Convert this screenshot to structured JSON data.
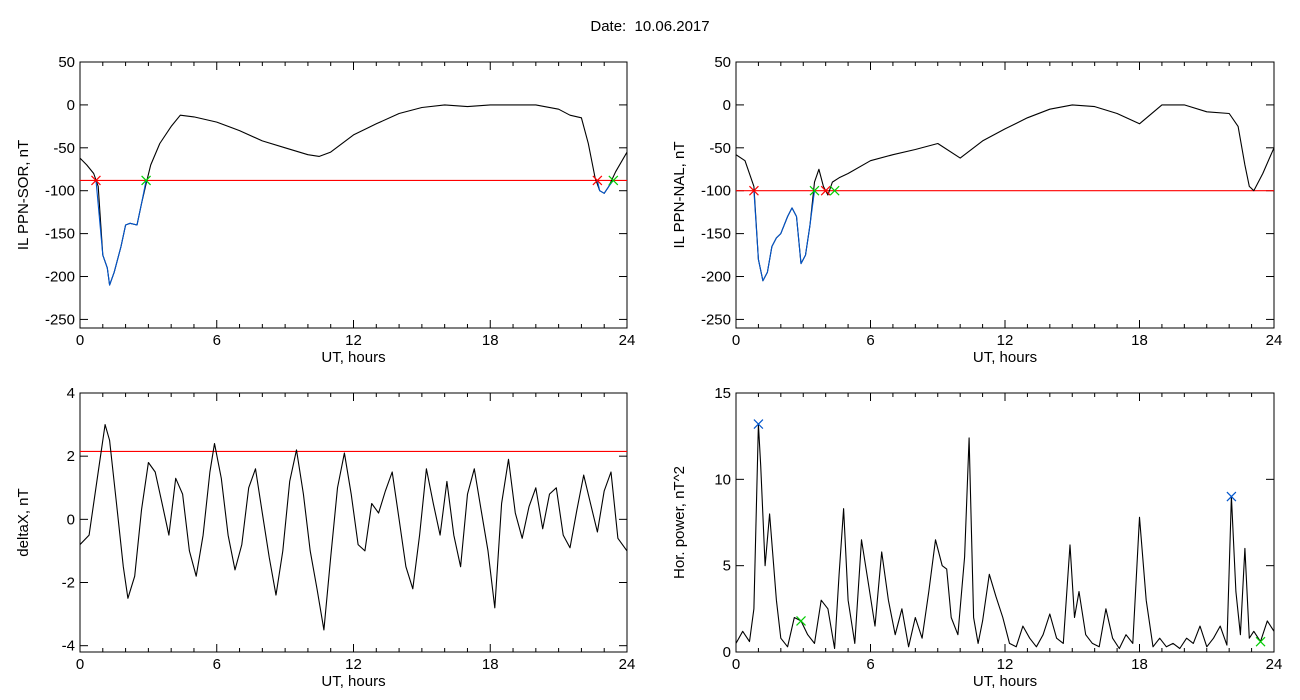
{
  "header": {
    "date_text": "Date:  10.06.2017"
  },
  "chart_data": [
    {
      "id": "sor",
      "type": "line",
      "xlabel": "UT, hours",
      "ylabel": "IL PPN-SOR, nT",
      "xlim": [
        0,
        24
      ],
      "ylim": [
        -260,
        50
      ],
      "xticks": [
        0,
        6,
        12,
        18,
        24
      ],
      "yticks": [
        50,
        0,
        -50,
        -100,
        -150,
        -200,
        -250
      ],
      "threshold": {
        "value": -88,
        "color": "#ff0000"
      },
      "series": [
        {
          "color": "#000000",
          "x": [
            0,
            0.3,
            0.6,
            0.8,
            1.0,
            1.2,
            1.3,
            1.5,
            1.8,
            2.0,
            2.2,
            2.5,
            2.7,
            2.9,
            3.1,
            3.5,
            4.0,
            4.4,
            5,
            6,
            7,
            8,
            9,
            10,
            10.5,
            11,
            12,
            13,
            14,
            15,
            16,
            17,
            18,
            19,
            20,
            21,
            21.5,
            22,
            22.3,
            22.6,
            22.8,
            23.0,
            23.2,
            23.5,
            24
          ],
          "y": [
            -62,
            -70,
            -80,
            -95,
            -175,
            -190,
            -210,
            -195,
            -165,
            -140,
            -138,
            -140,
            -115,
            -92,
            -70,
            -45,
            -25,
            -12,
            -14,
            -20,
            -30,
            -42,
            -50,
            -58,
            -60,
            -55,
            -35,
            -22,
            -10,
            -3,
            0,
            -2,
            0,
            0,
            0,
            -5,
            -12,
            -15,
            -45,
            -85,
            -100,
            -103,
            -95,
            -78,
            -55
          ]
        },
        {
          "color": "#0055cc",
          "x": [
            0.7,
            1.0,
            1.2,
            1.3,
            1.5,
            1.8,
            2.0,
            2.2,
            2.5,
            2.7,
            2.9
          ],
          "y": [
            -88,
            -175,
            -190,
            -210,
            -195,
            -165,
            -140,
            -138,
            -140,
            -115,
            -88
          ]
        },
        {
          "color": "#0055cc",
          "x": [
            22.7,
            22.8,
            23.0,
            23.2,
            23.4
          ],
          "y": [
            -88,
            -100,
            -103,
            -95,
            -88
          ]
        }
      ],
      "markers": [
        {
          "x": 0.7,
          "y": -88,
          "color": "#ff0000"
        },
        {
          "x": 2.9,
          "y": -88,
          "color": "#00cc00"
        },
        {
          "x": 22.7,
          "y": -88,
          "color": "#ff0000"
        },
        {
          "x": 23.4,
          "y": -88,
          "color": "#00cc00"
        }
      ]
    },
    {
      "id": "nal",
      "type": "line",
      "xlabel": "UT, hours",
      "ylabel": "IL PPN-NAL, nT",
      "xlim": [
        0,
        24
      ],
      "ylim": [
        -260,
        50
      ],
      "xticks": [
        0,
        6,
        12,
        18,
        24
      ],
      "yticks": [
        50,
        0,
        -50,
        -100,
        -150,
        -200,
        -250
      ],
      "threshold": {
        "value": -100,
        "color": "#ff0000"
      },
      "series": [
        {
          "color": "#000000",
          "x": [
            0,
            0.4,
            0.8,
            1.0,
            1.2,
            1.4,
            1.6,
            1.8,
            2.0,
            2.3,
            2.5,
            2.7,
            2.9,
            3.1,
            3.3,
            3.5,
            3.7,
            3.9,
            4.1,
            4.3,
            4.6,
            5,
            6,
            7,
            8,
            9,
            10,
            11,
            12,
            13,
            14,
            15,
            16,
            17,
            18,
            19,
            20,
            21,
            22,
            22.4,
            22.7,
            22.9,
            23.1,
            23.5,
            24
          ],
          "y": [
            -58,
            -65,
            -95,
            -180,
            -205,
            -195,
            -165,
            -155,
            -150,
            -130,
            -120,
            -130,
            -185,
            -175,
            -140,
            -90,
            -75,
            -95,
            -105,
            -90,
            -85,
            -80,
            -65,
            -58,
            -52,
            -45,
            -62,
            -42,
            -28,
            -15,
            -5,
            0,
            -2,
            -10,
            -22,
            0,
            0,
            -8,
            -10,
            -25,
            -70,
            -95,
            -100,
            -80,
            -50
          ]
        },
        {
          "color": "#0055cc",
          "x": [
            0.8,
            1.0,
            1.2,
            1.4,
            1.6,
            1.8,
            2.0,
            2.3,
            2.5,
            2.7,
            2.9,
            3.1,
            3.3,
            3.5
          ],
          "y": [
            -100,
            -180,
            -205,
            -195,
            -165,
            -155,
            -150,
            -130,
            -120,
            -130,
            -185,
            -175,
            -140,
            -100
          ]
        }
      ],
      "markers": [
        {
          "x": 0.8,
          "y": -100,
          "color": "#ff0000"
        },
        {
          "x": 3.5,
          "y": -100,
          "color": "#00cc00"
        },
        {
          "x": 4.0,
          "y": -100,
          "color": "#ff0000"
        },
        {
          "x": 4.4,
          "y": -100,
          "color": "#00cc00"
        }
      ]
    },
    {
      "id": "deltax",
      "type": "line",
      "xlabel": "UT, hours",
      "ylabel": "deltaX, nT",
      "xlim": [
        0,
        24
      ],
      "ylim": [
        -4.2,
        4
      ],
      "xticks": [
        0,
        6,
        12,
        18,
        24
      ],
      "yticks": [
        4,
        2,
        0,
        -2,
        -4
      ],
      "threshold": {
        "value": 2.15,
        "color": "#ff0000"
      },
      "series": [
        {
          "color": "#000000",
          "x": [
            0,
            0.4,
            0.8,
            1.1,
            1.3,
            1.6,
            1.9,
            2.1,
            2.4,
            2.7,
            3.0,
            3.3,
            3.6,
            3.9,
            4.2,
            4.5,
            4.8,
            5.1,
            5.4,
            5.7,
            5.9,
            6.2,
            6.5,
            6.8,
            7.1,
            7.4,
            7.7,
            8.0,
            8.3,
            8.6,
            8.9,
            9.2,
            9.5,
            9.8,
            10.1,
            10.4,
            10.7,
            11.0,
            11.3,
            11.6,
            11.9,
            12.2,
            12.5,
            12.8,
            13.1,
            13.4,
            13.7,
            14.0,
            14.3,
            14.6,
            14.9,
            15.2,
            15.5,
            15.8,
            16.1,
            16.4,
            16.7,
            17.0,
            17.3,
            17.6,
            17.9,
            18.2,
            18.5,
            18.8,
            19.1,
            19.4,
            19.7,
            20.0,
            20.3,
            20.6,
            20.9,
            21.2,
            21.5,
            21.8,
            22.1,
            22.4,
            22.7,
            23.0,
            23.3,
            23.6,
            24
          ],
          "y": [
            -0.8,
            -0.5,
            1.5,
            3.0,
            2.5,
            0.5,
            -1.5,
            -2.5,
            -1.8,
            0.3,
            1.8,
            1.5,
            0.5,
            -0.5,
            1.3,
            0.8,
            -1.0,
            -1.8,
            -0.5,
            1.5,
            2.4,
            1.3,
            -0.5,
            -1.6,
            -0.8,
            1.0,
            1.6,
            0.2,
            -1.2,
            -2.4,
            -1.0,
            1.2,
            2.2,
            0.8,
            -1.0,
            -2.2,
            -3.5,
            -1.2,
            1.0,
            2.1,
            0.8,
            -0.8,
            -1.0,
            0.5,
            0.2,
            0.9,
            1.5,
            0.0,
            -1.5,
            -2.2,
            -0.5,
            1.6,
            0.5,
            -0.5,
            1.2,
            -0.5,
            -1.5,
            0.8,
            1.6,
            0.3,
            -1.0,
            -2.8,
            0.5,
            1.9,
            0.2,
            -0.6,
            0.4,
            1.0,
            -0.3,
            0.8,
            1.0,
            -0.5,
            -0.9,
            0.3,
            1.4,
            0.5,
            -0.4,
            0.9,
            1.5,
            -0.6,
            -1.0
          ]
        }
      ],
      "markers": []
    },
    {
      "id": "power",
      "type": "line",
      "xlabel": "UT, hours",
      "ylabel": "Hor. power, nT^2",
      "xlim": [
        0,
        24
      ],
      "ylim": [
        0,
        15
      ],
      "xticks": [
        0,
        6,
        12,
        18,
        24
      ],
      "yticks": [
        15,
        10,
        5,
        0
      ],
      "threshold": null,
      "series": [
        {
          "color": "#000000",
          "x": [
            0,
            0.3,
            0.6,
            0.8,
            1.0,
            1.1,
            1.3,
            1.5,
            1.8,
            2.0,
            2.3,
            2.6,
            2.9,
            3.2,
            3.5,
            3.8,
            4.1,
            4.4,
            4.6,
            4.8,
            5.0,
            5.3,
            5.6,
            5.9,
            6.2,
            6.5,
            6.8,
            7.1,
            7.4,
            7.7,
            8.0,
            8.3,
            8.6,
            8.9,
            9.2,
            9.4,
            9.6,
            9.9,
            10.2,
            10.4,
            10.6,
            10.8,
            11.0,
            11.3,
            11.6,
            11.9,
            12.2,
            12.5,
            12.8,
            13.1,
            13.4,
            13.7,
            14.0,
            14.3,
            14.6,
            14.9,
            15.1,
            15.3,
            15.6,
            15.9,
            16.2,
            16.5,
            16.8,
            17.1,
            17.4,
            17.7,
            18.0,
            18.3,
            18.6,
            18.9,
            19.2,
            19.5,
            19.8,
            20.1,
            20.4,
            20.7,
            21.0,
            21.3,
            21.6,
            21.9,
            22.1,
            22.3,
            22.5,
            22.7,
            22.9,
            23.1,
            23.4,
            23.7,
            24
          ],
          "y": [
            0.5,
            1.2,
            0.6,
            2.5,
            13.2,
            10.8,
            5.0,
            8.0,
            3.0,
            0.8,
            0.3,
            2.0,
            1.8,
            1.0,
            0.5,
            3.0,
            2.5,
            0.2,
            4.5,
            8.3,
            3.0,
            0.5,
            6.5,
            4.0,
            1.5,
            5.8,
            3.0,
            1.0,
            2.5,
            0.3,
            2.0,
            0.8,
            3.5,
            6.5,
            5.0,
            4.8,
            2.0,
            1.0,
            5.5,
            12.4,
            2.0,
            0.5,
            1.8,
            4.5,
            3.2,
            2.0,
            0.5,
            0.3,
            1.5,
            0.8,
            0.3,
            1.0,
            2.2,
            0.8,
            0.5,
            6.2,
            2.0,
            3.5,
            1.0,
            0.5,
            0.3,
            2.5,
            0.8,
            0.2,
            1.0,
            0.5,
            7.8,
            3.0,
            0.3,
            0.8,
            0.3,
            0.5,
            0.2,
            0.8,
            0.5,
            1.5,
            0.3,
            0.8,
            1.5,
            0.4,
            9.0,
            3.5,
            1.0,
            6.0,
            0.8,
            1.2,
            0.6,
            1.8,
            1.2
          ]
        }
      ],
      "markers": [
        {
          "x": 1.0,
          "y": 13.2,
          "color": "#0055cc"
        },
        {
          "x": 2.9,
          "y": 1.8,
          "color": "#00cc00"
        },
        {
          "x": 22.1,
          "y": 9.0,
          "color": "#0055cc"
        },
        {
          "x": 23.4,
          "y": 0.6,
          "color": "#00cc00"
        }
      ]
    }
  ]
}
